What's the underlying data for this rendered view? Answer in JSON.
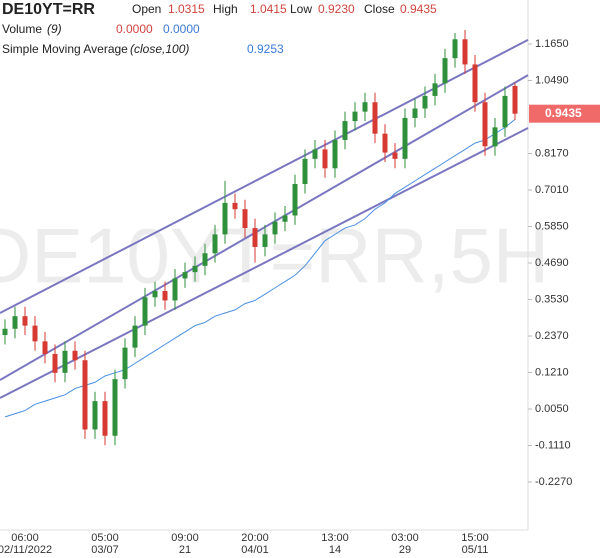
{
  "chart_data": {
    "type": "candlestick",
    "watermark": "DE10YT=RR,5H",
    "header": {
      "symbol": "DE10YT=RR",
      "open_label": "Open",
      "open": {
        "value": 1.0315,
        "label": "1.0315"
      },
      "high_label": "High",
      "high": {
        "value": 1.0415,
        "label": "1.0415"
      },
      "low_label": "Low",
      "low": {
        "value": 0.923,
        "label": "0.9230"
      },
      "close_label": "Close",
      "close": {
        "value": 0.9435,
        "label": "0.9435"
      }
    },
    "volume": {
      "name": "Volume",
      "params": "(9)",
      "values": [
        {
          "value": 0,
          "label": "0.0000"
        },
        {
          "value": 0,
          "label": "0.0000"
        }
      ],
      "colors": [
        "#d0443e",
        "#3a7bd5"
      ]
    },
    "sma": {
      "name": "Simple Moving Average",
      "params": "(close,100)",
      "last": {
        "value": 0.9253,
        "label": "0.9253"
      },
      "color": "#4a90e2",
      "values": [
        -0.02,
        -0.01,
        0.0,
        0.02,
        0.03,
        0.04,
        0.05,
        0.07,
        0.08,
        0.09,
        0.11,
        0.12,
        0.13,
        0.15,
        0.17,
        0.19,
        0.21,
        0.23,
        0.25,
        0.27,
        0.28,
        0.3,
        0.31,
        0.32,
        0.34,
        0.35,
        0.37,
        0.39,
        0.41,
        0.43,
        0.46,
        0.5,
        0.54,
        0.56,
        0.58,
        0.59,
        0.61,
        0.64,
        0.66,
        0.69,
        0.71,
        0.73,
        0.75,
        0.77,
        0.79,
        0.81,
        0.83,
        0.85,
        0.86,
        0.88,
        0.9,
        0.9253
      ]
    },
    "x_time": [
      null,
      null,
      "06:00",
      null,
      null,
      null,
      null,
      null,
      null,
      null,
      "05:00",
      null,
      null,
      null,
      null,
      null,
      null,
      null,
      "09:00",
      null,
      null,
      null,
      null,
      null,
      null,
      "20:00",
      null,
      null,
      null,
      null,
      null,
      null,
      null,
      "13:00",
      null,
      null,
      null,
      null,
      null,
      null,
      "03:00",
      null,
      null,
      null,
      null,
      null,
      null,
      "15:00",
      null,
      null,
      null,
      null
    ],
    "x_date": [
      null,
      null,
      "02/11/2022",
      null,
      null,
      null,
      null,
      null,
      null,
      null,
      "03/07",
      null,
      null,
      null,
      null,
      null,
      null,
      null,
      "21",
      null,
      null,
      null,
      null,
      null,
      null,
      "04/01",
      null,
      null,
      null,
      null,
      null,
      null,
      null,
      "14",
      null,
      null,
      null,
      null,
      null,
      null,
      "29",
      null,
      null,
      null,
      null,
      null,
      null,
      "05/11",
      null,
      null,
      null,
      null
    ],
    "open": [
      0.24,
      0.26,
      0.3,
      0.27,
      0.22,
      0.18,
      0.12,
      0.19,
      0.16,
      -0.06,
      0.03,
      -0.08,
      0.1,
      0.2,
      0.27,
      0.36,
      0.38,
      0.35,
      0.42,
      0.44,
      0.46,
      0.5,
      0.56,
      0.66,
      0.64,
      0.58,
      0.52,
      0.56,
      0.6,
      0.62,
      0.72,
      0.8,
      0.83,
      0.77,
      0.86,
      0.92,
      0.95,
      0.98,
      0.88,
      0.82,
      0.8,
      0.93,
      0.96,
      1.0,
      1.04,
      1.12,
      1.18,
      1.1,
      0.98,
      0.84,
      0.9,
      1.0315
    ],
    "high": [
      0.29,
      0.33,
      0.33,
      0.3,
      0.25,
      0.21,
      0.22,
      0.22,
      0.19,
      0.06,
      0.06,
      0.13,
      0.23,
      0.3,
      0.39,
      0.41,
      0.41,
      0.45,
      0.47,
      0.49,
      0.53,
      0.59,
      0.73,
      0.69,
      0.67,
      0.61,
      0.59,
      0.63,
      0.65,
      0.75,
      0.83,
      0.86,
      0.86,
      0.89,
      0.95,
      0.98,
      1.01,
      1.01,
      0.91,
      0.85,
      0.96,
      0.99,
      1.03,
      1.07,
      1.15,
      1.2,
      1.21,
      1.13,
      1.01,
      0.93,
      1.03,
      1.0415
    ],
    "low": [
      0.21,
      0.23,
      0.24,
      0.19,
      0.15,
      0.09,
      0.09,
      0.13,
      -0.09,
      -0.09,
      -0.11,
      -0.11,
      0.07,
      0.17,
      0.24,
      0.33,
      0.32,
      0.32,
      0.39,
      0.41,
      0.43,
      0.47,
      0.53,
      0.61,
      0.55,
      0.47,
      0.49,
      0.53,
      0.57,
      0.59,
      0.69,
      0.77,
      0.74,
      0.74,
      0.83,
      0.89,
      0.92,
      0.85,
      0.79,
      0.77,
      0.77,
      0.9,
      0.93,
      0.97,
      1.01,
      1.09,
      1.07,
      0.95,
      0.81,
      0.81,
      0.87,
      0.923
    ],
    "close": [
      0.26,
      0.3,
      0.27,
      0.22,
      0.18,
      0.12,
      0.19,
      0.16,
      -0.06,
      0.03,
      -0.08,
      0.1,
      0.2,
      0.27,
      0.36,
      0.38,
      0.35,
      0.42,
      0.44,
      0.46,
      0.5,
      0.56,
      0.66,
      0.64,
      0.58,
      0.52,
      0.56,
      0.6,
      0.62,
      0.72,
      0.8,
      0.83,
      0.77,
      0.86,
      0.92,
      0.95,
      0.98,
      0.88,
      0.82,
      0.8,
      0.93,
      0.96,
      1.0,
      1.04,
      1.12,
      1.18,
      1.1,
      0.98,
      0.84,
      0.9,
      1.0,
      0.9435
    ],
    "up_color": "#2f8f3a",
    "down_color": "#d63a32",
    "channels": [
      [
        0.31,
        1.178
      ],
      [
        0.097,
        1.066
      ],
      [
        0.04,
        0.898
      ]
    ],
    "channel_color": "#7a76c0",
    "ylim": [
      -0.3795,
      1.3048
    ],
    "yticks": [
      {
        "value": 1.165,
        "label": "1.1650"
      },
      {
        "value": 1.049,
        "label": "1.0490"
      },
      {
        "value": 0.817,
        "label": "0.8170"
      },
      {
        "value": 0.701,
        "label": "0.7010"
      },
      {
        "value": 0.585,
        "label": "0.5850"
      },
      {
        "value": 0.469,
        "label": "0.4690"
      },
      {
        "value": 0.353,
        "label": "0.3530"
      },
      {
        "value": 0.237,
        "label": "0.2370"
      },
      {
        "value": 0.121,
        "label": "0.1210"
      },
      {
        "value": 0.005,
        "label": "0.0050"
      },
      {
        "value": -0.111,
        "label": "-0.1110"
      },
      {
        "value": -0.227,
        "label": "-0.2270"
      }
    ],
    "price_tag_color": "#f06a6a"
  }
}
